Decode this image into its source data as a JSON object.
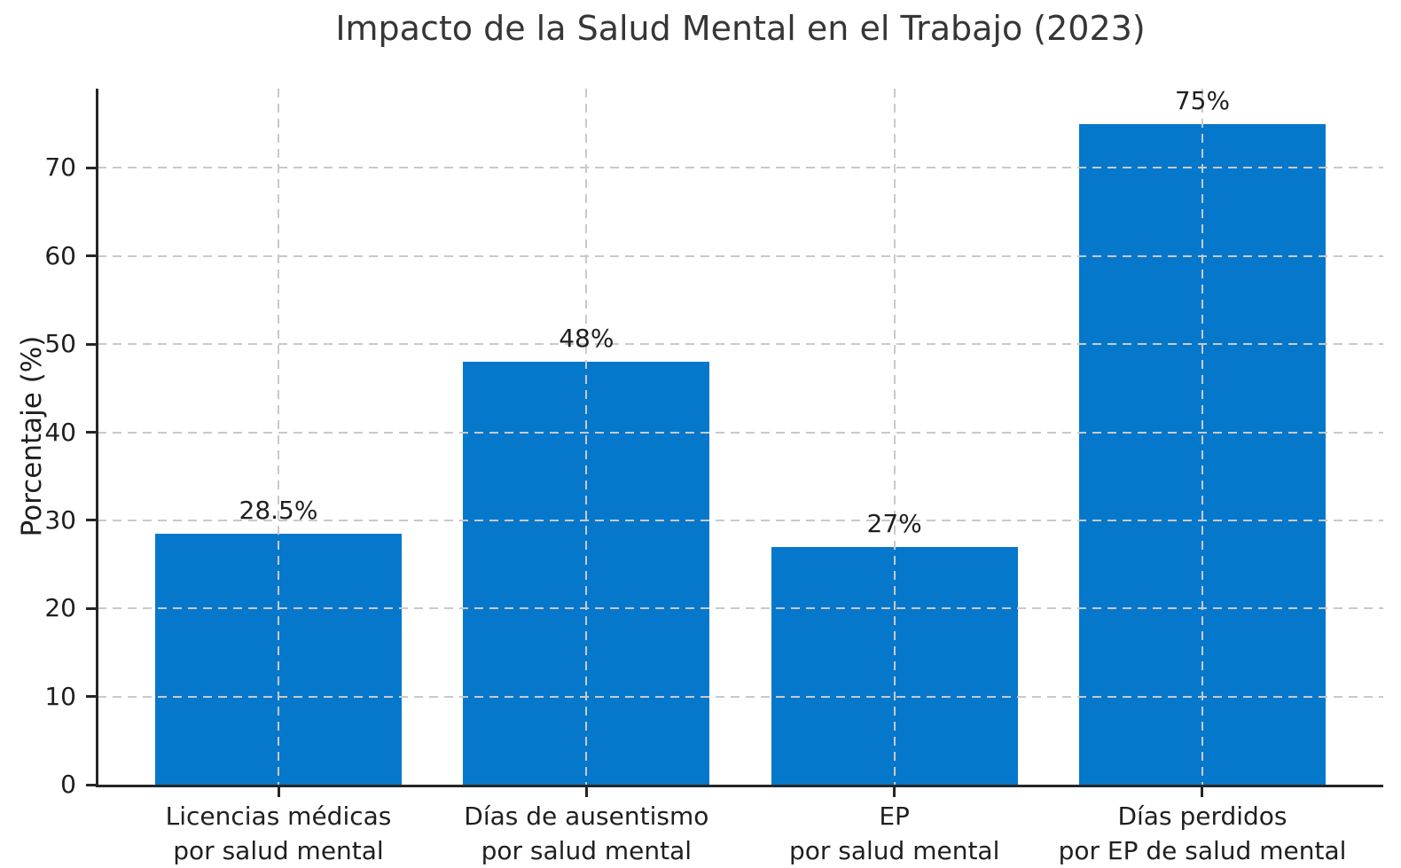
{
  "chart_data": {
    "type": "bar",
    "title": "Impacto de la Salud Mental en el Trabajo (2023)",
    "xlabel": "",
    "ylabel": "Porcentaje (%)",
    "categories": [
      "Licencias médicas\npor salud mental",
      "Días de ausentismo\npor salud mental",
      "EP\npor salud mental",
      "Días perdidos\npor EP de salud mental"
    ],
    "values": [
      28.5,
      48,
      27,
      75
    ],
    "value_labels": [
      "28.5%",
      "48%",
      "27%",
      "75%"
    ],
    "yticks": [
      0,
      10,
      20,
      30,
      40,
      50,
      60,
      70
    ],
    "ytick_labels": [
      "0",
      "10",
      "20",
      "30",
      "40",
      "50",
      "60",
      "70"
    ],
    "ylim": [
      0,
      79
    ],
    "grid": "dashed, horizontal at y-ticks and vertical at bar centers, drawn over bars",
    "legend": "none",
    "bar_color": "#0578cc",
    "grid_color": "#c9c9c9",
    "axis_color": "#262626",
    "text_color": "#1f1f1f",
    "title_color": "#363636",
    "background_color": "#ffffff"
  }
}
